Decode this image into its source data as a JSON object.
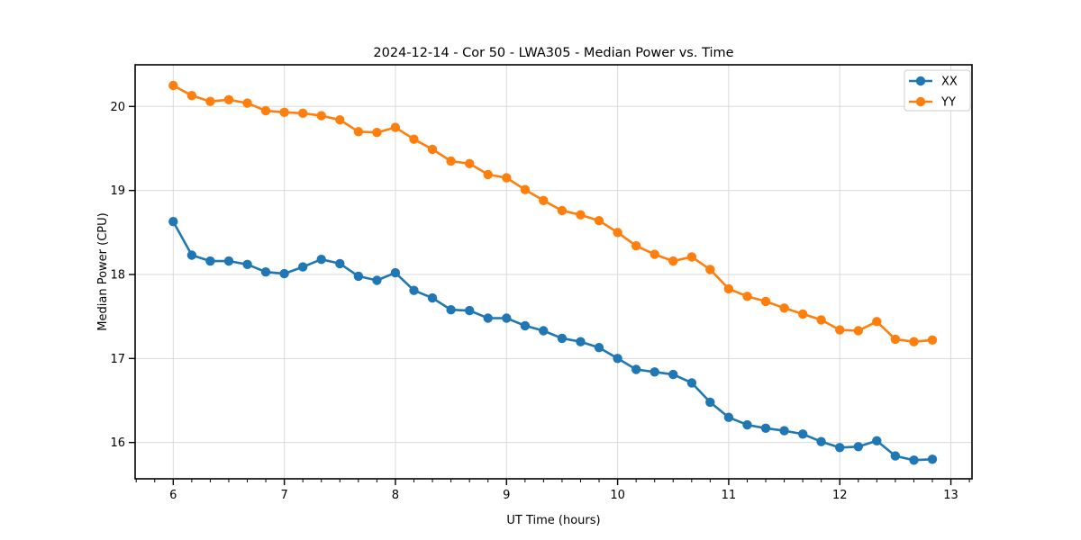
{
  "figure": {
    "background": "#ffffff"
  },
  "chart_data": {
    "type": "line",
    "title": "2024-12-14 - Cor 50 - LWA305 - Median Power vs. Time",
    "xlabel": "UT Time (hours)",
    "ylabel": "Median Power (CPU)",
    "x": [
      6.0,
      6.167,
      6.333,
      6.5,
      6.667,
      6.833,
      7.0,
      7.167,
      7.333,
      7.5,
      7.667,
      7.833,
      8.0,
      8.167,
      8.333,
      8.5,
      8.667,
      8.833,
      9.0,
      9.167,
      9.333,
      9.5,
      9.667,
      9.833,
      10.0,
      10.167,
      10.333,
      10.5,
      10.667,
      10.833,
      11.0,
      11.167,
      11.333,
      11.5,
      11.667,
      11.833,
      12.0,
      12.167,
      12.333,
      12.5,
      12.667,
      12.833
    ],
    "series": [
      {
        "name": "XX",
        "color": "#1f77b4",
        "marker": "circle",
        "values": [
          18.63,
          18.23,
          18.16,
          18.16,
          18.12,
          18.03,
          18.01,
          18.09,
          18.18,
          18.13,
          17.98,
          17.93,
          18.02,
          17.81,
          17.72,
          17.58,
          17.57,
          17.48,
          17.48,
          17.39,
          17.33,
          17.24,
          17.2,
          17.13,
          17.0,
          16.87,
          16.84,
          16.81,
          16.71,
          16.48,
          16.3,
          16.21,
          16.17,
          16.14,
          16.1,
          16.01,
          15.94,
          15.95,
          16.02,
          15.84,
          15.79,
          15.8
        ]
      },
      {
        "name": "YY",
        "color": "#ff7f0e",
        "marker": "circle",
        "values": [
          20.25,
          20.13,
          20.06,
          20.08,
          20.04,
          19.95,
          19.93,
          19.92,
          19.89,
          19.84,
          19.7,
          19.69,
          19.75,
          19.61,
          19.49,
          19.35,
          19.32,
          19.19,
          19.15,
          19.01,
          18.88,
          18.76,
          18.71,
          18.64,
          18.5,
          18.34,
          18.24,
          18.16,
          18.21,
          18.06,
          17.83,
          17.74,
          17.68,
          17.6,
          17.53,
          17.46,
          17.34,
          17.33,
          17.44,
          17.23,
          17.2,
          17.22
        ]
      }
    ],
    "xlim": [
      5.657,
      13.19
    ],
    "ylim": [
      15.568,
      20.496
    ],
    "xticks": [
      6,
      7,
      8,
      9,
      10,
      11,
      12,
      13
    ],
    "yticks": [
      16,
      17,
      18,
      19,
      20
    ],
    "x_minor_divisions": 6,
    "grid": true,
    "grid_color": "#d9d9d9",
    "spine_color": "#000000",
    "legend": {
      "position": "upper right",
      "entries": [
        "XX",
        "YY"
      ]
    }
  }
}
